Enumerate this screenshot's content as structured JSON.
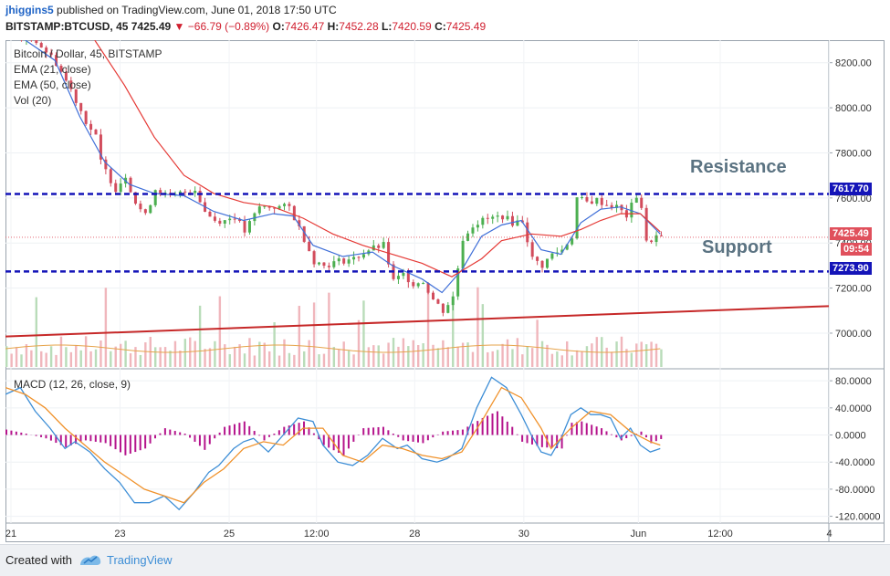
{
  "header": {
    "user": "jhiggins5",
    "published_text": "published on TradingView.com, June 01, 2018 17:50 UTC",
    "symbol": "BITSTAMP:BTCUSD, 45",
    "last": "7425.49",
    "arrow": "▼",
    "change": "−66.79 (−0.89%)",
    "o_label": "O:",
    "o": "7426.47",
    "h_label": "H:",
    "h": "7452.28",
    "l_label": "L:",
    "l": "7420.59",
    "c_label": "C:",
    "c": "7425.49"
  },
  "legend": {
    "title": "Bitcoin / Dollar, 45, BITSTAMP",
    "ema21": "EMA (21, close)",
    "ema50": "EMA (50, close)",
    "vol": "Vol (20)",
    "macd": "MACD (12, 26, close, 9)"
  },
  "annotations": {
    "resistance": "Resistance",
    "support": "Support"
  },
  "tags": {
    "resistance": "7617.70",
    "price": "7425.49",
    "countdown": "09:54",
    "support": "7273.90"
  },
  "colors": {
    "up": "#4caf50",
    "down": "#d24c5c",
    "ema21": "#3f6fd8",
    "ema50": "#e53935",
    "level_line": "#1414b8",
    "trend_line": "#c62828",
    "macd_line": "#3d8ed6",
    "signal_line": "#f0922b",
    "histogram": "#b5148c",
    "tag_blue": "#1414b8",
    "tag_red": "#e0505c"
  },
  "footer": {
    "created": "Created with",
    "brand": "TradingView"
  },
  "chart_data": [
    {
      "type": "candlestick",
      "title": "Bitcoin / Dollar, 45, BITSTAMP",
      "ylim": [
        6850,
        8300
      ],
      "yticks": [
        "8200.00",
        "8000.00",
        "7800.00",
        "7600.00",
        "7400.00",
        "7200.00",
        "7000.00"
      ],
      "x_ticks": [
        "21",
        "23",
        "25",
        "12:00",
        "28",
        "30",
        "Jun",
        "12:00",
        "4"
      ],
      "price_path": [
        [
          0,
          8330
        ],
        [
          6,
          8300
        ],
        [
          10,
          8200
        ],
        [
          13,
          8080
        ],
        [
          16,
          7940
        ],
        [
          18,
          7870
        ],
        [
          19,
          7760
        ],
        [
          20,
          7720
        ],
        [
          22,
          7640
        ],
        [
          24,
          7700
        ],
        [
          26,
          7580
        ],
        [
          28,
          7520
        ],
        [
          30,
          7640
        ],
        [
          33,
          7600
        ],
        [
          35,
          7620
        ],
        [
          38,
          7640
        ],
        [
          40,
          7540
        ],
        [
          42,
          7500
        ],
        [
          44,
          7500
        ],
        [
          46,
          7520
        ],
        [
          48,
          7450
        ],
        [
          51,
          7560
        ],
        [
          54,
          7560
        ],
        [
          57,
          7560
        ],
        [
          60,
          7420
        ],
        [
          62,
          7320
        ],
        [
          64,
          7300
        ],
        [
          67,
          7320
        ],
        [
          70,
          7330
        ],
        [
          73,
          7370
        ],
        [
          76,
          7390
        ],
        [
          78,
          7230
        ],
        [
          80,
          7260
        ],
        [
          82,
          7220
        ],
        [
          84,
          7230
        ],
        [
          86,
          7150
        ],
        [
          88,
          7100
        ],
        [
          90,
          7160
        ],
        [
          92,
          7420
        ],
        [
          94,
          7480
        ],
        [
          96,
          7500
        ],
        [
          98,
          7510
        ],
        [
          100,
          7520
        ],
        [
          102,
          7490
        ],
        [
          104,
          7500
        ],
        [
          106,
          7330
        ],
        [
          108,
          7300
        ],
        [
          110,
          7350
        ],
        [
          112,
          7370
        ],
        [
          114,
          7430
        ],
        [
          115,
          7600
        ],
        [
          117,
          7580
        ],
        [
          119,
          7590
        ],
        [
          121,
          7570
        ],
        [
          123,
          7560
        ],
        [
          125,
          7520
        ],
        [
          127,
          7610
        ],
        [
          128,
          7560
        ],
        [
          129,
          7400
        ],
        [
          131,
          7430
        ],
        [
          132,
          7425
        ]
      ],
      "ema21_path": [
        [
          4,
          8300
        ],
        [
          10,
          8210
        ],
        [
          15,
          7960
        ],
        [
          20,
          7760
        ],
        [
          25,
          7660
        ],
        [
          30,
          7620
        ],
        [
          36,
          7610
        ],
        [
          42,
          7540
        ],
        [
          48,
          7500
        ],
        [
          54,
          7530
        ],
        [
          58,
          7520
        ],
        [
          62,
          7390
        ],
        [
          68,
          7340
        ],
        [
          74,
          7360
        ],
        [
          78,
          7300
        ],
        [
          84,
          7240
        ],
        [
          88,
          7180
        ],
        [
          92,
          7280
        ],
        [
          96,
          7430
        ],
        [
          100,
          7480
        ],
        [
          104,
          7500
        ],
        [
          108,
          7370
        ],
        [
          112,
          7350
        ],
        [
          116,
          7490
        ],
        [
          120,
          7550
        ],
        [
          124,
          7560
        ],
        [
          128,
          7530
        ],
        [
          132,
          7440
        ]
      ],
      "ema50_path": [
        [
          18,
          8300
        ],
        [
          24,
          8100
        ],
        [
          30,
          7870
        ],
        [
          36,
          7700
        ],
        [
          42,
          7620
        ],
        [
          48,
          7580
        ],
        [
          54,
          7560
        ],
        [
          60,
          7510
        ],
        [
          66,
          7440
        ],
        [
          72,
          7390
        ],
        [
          78,
          7350
        ],
        [
          84,
          7310
        ],
        [
          90,
          7250
        ],
        [
          96,
          7330
        ],
        [
          100,
          7410
        ],
        [
          106,
          7440
        ],
        [
          112,
          7430
        ],
        [
          116,
          7460
        ],
        [
          120,
          7500
        ],
        [
          124,
          7530
        ],
        [
          128,
          7530
        ],
        [
          132,
          7450
        ]
      ],
      "levels": {
        "resistance": 7617.7,
        "support": 7273.9,
        "last": 7425.49
      },
      "trend_line": [
        [
          0,
          6985
        ],
        [
          166,
          7120
        ]
      ]
    },
    {
      "type": "histogram",
      "title": "MACD (12, 26, close, 9)",
      "ylim": [
        -130,
        95
      ],
      "yticks": [
        "80.0000",
        "40.0000",
        "0.0000",
        "-40.0000",
        "-80.0000",
        "-120.0000"
      ],
      "macd_path": [
        [
          0,
          60
        ],
        [
          3,
          70
        ],
        [
          6,
          35
        ],
        [
          9,
          10
        ],
        [
          12,
          -20
        ],
        [
          14,
          -10
        ],
        [
          17,
          -25
        ],
        [
          20,
          -50
        ],
        [
          23,
          -70
        ],
        [
          26,
          -100
        ],
        [
          29,
          -100
        ],
        [
          32,
          -90
        ],
        [
          35,
          -110
        ],
        [
          38,
          -85
        ],
        [
          41,
          -55
        ],
        [
          43,
          -45
        ],
        [
          46,
          -20
        ],
        [
          48,
          -10
        ],
        [
          50,
          -5
        ],
        [
          53,
          -25
        ],
        [
          56,
          0
        ],
        [
          59,
          25
        ],
        [
          62,
          20
        ],
        [
          64,
          -15
        ],
        [
          67,
          -40
        ],
        [
          70,
          -45
        ],
        [
          73,
          -30
        ],
        [
          76,
          -5
        ],
        [
          79,
          -20
        ],
        [
          81,
          -15
        ],
        [
          84,
          -35
        ],
        [
          87,
          -40
        ],
        [
          89,
          -35
        ],
        [
          92,
          -20
        ],
        [
          95,
          40
        ],
        [
          98,
          85
        ],
        [
          101,
          70
        ],
        [
          104,
          30
        ],
        [
          106,
          0
        ],
        [
          108,
          -25
        ],
        [
          110,
          -30
        ],
        [
          112,
          -5
        ],
        [
          114,
          30
        ],
        [
          116,
          40
        ],
        [
          118,
          30
        ],
        [
          120,
          30
        ],
        [
          122,
          25
        ],
        [
          124,
          -5
        ],
        [
          126,
          10
        ],
        [
          128,
          -15
        ],
        [
          130,
          -25
        ],
        [
          132,
          -20
        ]
      ],
      "signal_path": [
        [
          0,
          70
        ],
        [
          4,
          60
        ],
        [
          8,
          40
        ],
        [
          12,
          10
        ],
        [
          16,
          -15
        ],
        [
          20,
          -40
        ],
        [
          24,
          -60
        ],
        [
          28,
          -80
        ],
        [
          32,
          -90
        ],
        [
          36,
          -100
        ],
        [
          40,
          -70
        ],
        [
          44,
          -50
        ],
        [
          48,
          -20
        ],
        [
          52,
          -10
        ],
        [
          56,
          -15
        ],
        [
          60,
          10
        ],
        [
          64,
          10
        ],
        [
          68,
          -30
        ],
        [
          72,
          -40
        ],
        [
          76,
          -15
        ],
        [
          80,
          -20
        ],
        [
          84,
          -30
        ],
        [
          88,
          -35
        ],
        [
          92,
          -25
        ],
        [
          96,
          20
        ],
        [
          100,
          70
        ],
        [
          104,
          55
        ],
        [
          108,
          10
        ],
        [
          110,
          -20
        ],
        [
          114,
          10
        ],
        [
          118,
          35
        ],
        [
          122,
          30
        ],
        [
          126,
          5
        ],
        [
          130,
          -10
        ],
        [
          132,
          -15
        ]
      ],
      "hist_path": [
        [
          0,
          8
        ],
        [
          4,
          2
        ],
        [
          8,
          -5
        ],
        [
          12,
          -18
        ],
        [
          16,
          -8
        ],
        [
          20,
          -12
        ],
        [
          24,
          -30
        ],
        [
          28,
          -20
        ],
        [
          32,
          10
        ],
        [
          36,
          2
        ],
        [
          40,
          -22
        ],
        [
          44,
          12
        ],
        [
          48,
          20
        ],
        [
          52,
          -8
        ],
        [
          56,
          12
        ],
        [
          60,
          20
        ],
        [
          64,
          -15
        ],
        [
          68,
          -30
        ],
        [
          72,
          10
        ],
        [
          76,
          12
        ],
        [
          80,
          -8
        ],
        [
          84,
          -12
        ],
        [
          88,
          5
        ],
        [
          92,
          8
        ],
        [
          96,
          25
        ],
        [
          99,
          35
        ],
        [
          102,
          12
        ],
        [
          104,
          -10
        ],
        [
          108,
          -18
        ],
        [
          112,
          -20
        ],
        [
          114,
          18
        ],
        [
          116,
          20
        ],
        [
          120,
          10
        ],
        [
          124,
          -8
        ],
        [
          128,
          5
        ],
        [
          130,
          -12
        ],
        [
          132,
          -6
        ]
      ]
    }
  ]
}
